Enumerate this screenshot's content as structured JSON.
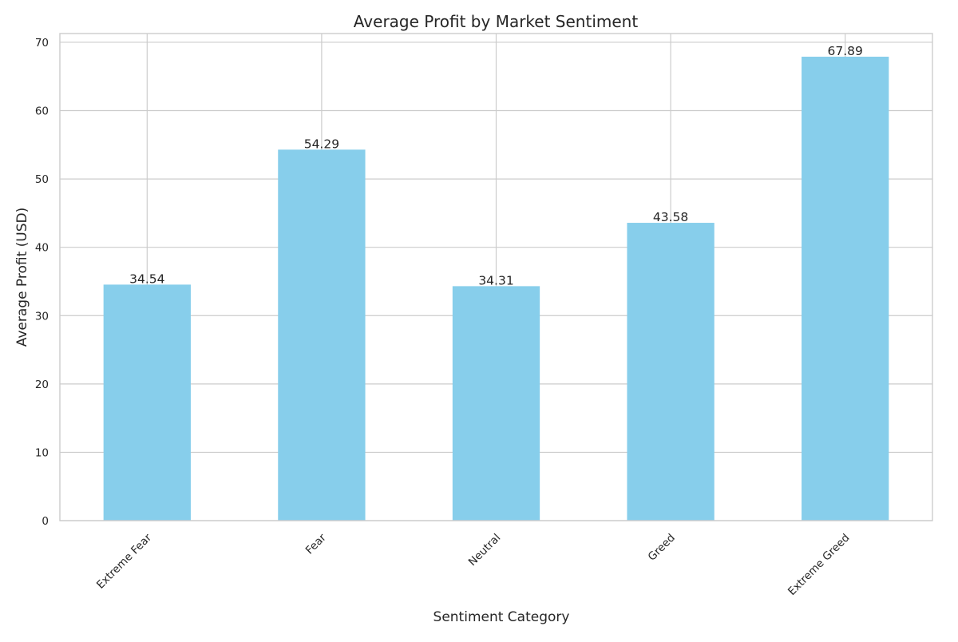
{
  "chart_data": {
    "type": "bar",
    "title": "Average Profit by Market Sentiment",
    "xlabel": "Sentiment Category",
    "ylabel": "Average Profit (USD)",
    "categories": [
      "Extreme Fear",
      "Fear",
      "Neutral",
      "Greed",
      "Extreme Greed"
    ],
    "values": [
      34.54,
      54.29,
      34.31,
      43.58,
      67.89
    ],
    "value_labels": [
      "34.54",
      "54.29",
      "34.31",
      "43.58",
      "67.89"
    ],
    "yticks": [
      0,
      10,
      20,
      30,
      40,
      50,
      60,
      70
    ],
    "ylim": [
      0,
      71.28
    ],
    "grid": true,
    "bar_color": "#87ceeb"
  }
}
